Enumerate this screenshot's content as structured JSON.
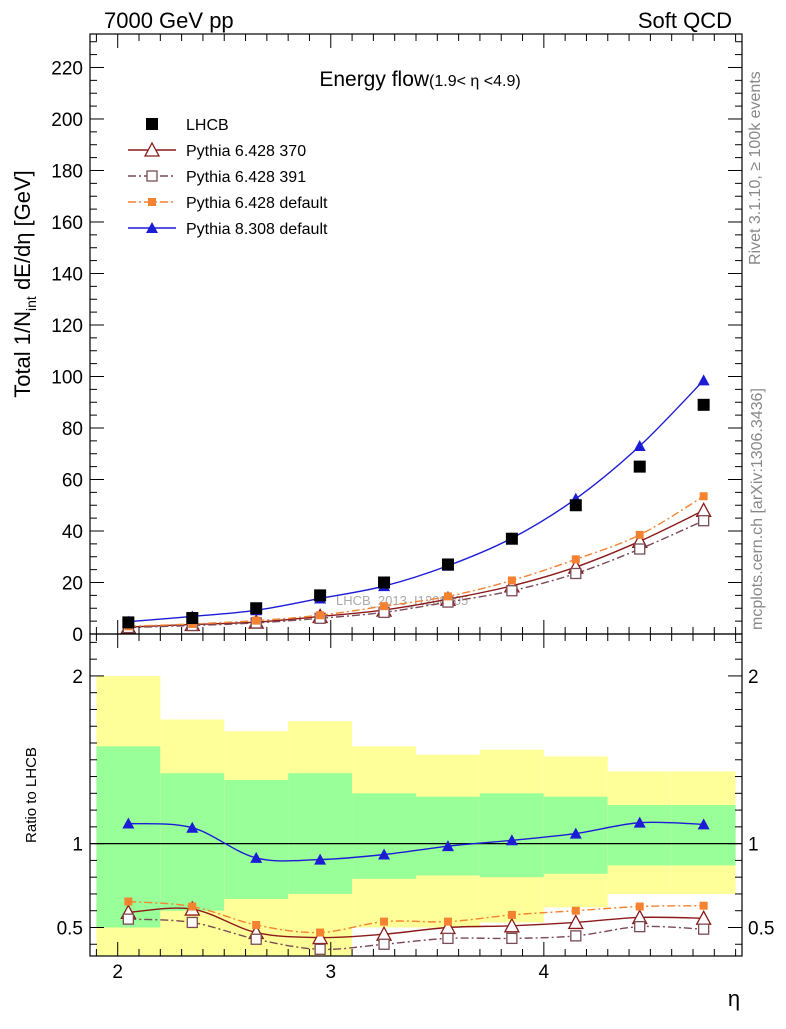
{
  "header": {
    "left": "7000 GeV pp",
    "right": "Soft QCD"
  },
  "side_labels": {
    "rivet": "Rivet 3.1.10, ≥ 100k events",
    "mcplots": "mcplots.cern.ch [arXiv:1306.3436]"
  },
  "chart_data": {
    "type": "scatter",
    "title": "Energy flow",
    "title_sub": "(1.9< η <4.9)",
    "watermark": "LHCB_2013_I1208105",
    "xlabel": "η",
    "xlim": [
      1.87,
      4.93
    ],
    "x_ticks": [
      2,
      3,
      4
    ],
    "x": [
      2.05,
      2.35,
      2.65,
      2.95,
      3.25,
      3.55,
      3.85,
      4.15,
      4.45,
      4.75
    ],
    "main": {
      "ylabel": "Total 1/N_int dE/dη [GeV]",
      "ylabel_pre": "Total 1/N",
      "ylabel_sub": "int",
      "ylabel_post": " dE/dη [GeV]",
      "ylim": [
        0,
        233
      ],
      "y_ticks": [
        0,
        20,
        40,
        60,
        80,
        100,
        120,
        140,
        160,
        180,
        200,
        220
      ]
    },
    "ratio": {
      "ylabel": "Ratio to LHCB",
      "ylim": [
        0.33,
        2.25
      ],
      "y_ticks": [
        0.5,
        1,
        2
      ],
      "y_tick_labels": [
        "0.5",
        "1",
        "2"
      ]
    },
    "bins": [
      {
        "lo": 1.9,
        "hi": 2.2
      },
      {
        "lo": 2.2,
        "hi": 2.5
      },
      {
        "lo": 2.5,
        "hi": 2.8
      },
      {
        "lo": 2.8,
        "hi": 3.1
      },
      {
        "lo": 3.1,
        "hi": 3.4
      },
      {
        "lo": 3.4,
        "hi": 3.7
      },
      {
        "lo": 3.7,
        "hi": 4.0
      },
      {
        "lo": 4.0,
        "hi": 4.3
      },
      {
        "lo": 4.3,
        "hi": 4.6
      },
      {
        "lo": 4.6,
        "hi": 4.9
      }
    ],
    "band_yellow": [
      [
        0.33,
        2.0
      ],
      [
        0.33,
        1.74
      ],
      [
        0.33,
        1.67
      ],
      [
        0.33,
        1.73
      ],
      [
        0.5,
        1.58
      ],
      [
        0.5,
        1.53
      ],
      [
        0.53,
        1.56
      ],
      [
        0.62,
        1.52
      ],
      [
        0.7,
        1.43
      ],
      [
        0.7,
        1.43
      ]
    ],
    "band_green": [
      [
        0.5,
        1.58
      ],
      [
        0.6,
        1.42
      ],
      [
        0.67,
        1.38
      ],
      [
        0.7,
        1.42
      ],
      [
        0.79,
        1.3
      ],
      [
        0.81,
        1.28
      ],
      [
        0.8,
        1.3
      ],
      [
        0.82,
        1.28
      ],
      [
        0.87,
        1.23
      ],
      [
        0.87,
        1.23
      ]
    ],
    "series": [
      {
        "name": "LHCB",
        "marker": "square-filled",
        "color": "#000000",
        "line": "none",
        "values": [
          4.5,
          6.2,
          10,
          15,
          20,
          27,
          37,
          50,
          65,
          89
        ],
        "ratio": [
          1,
          1,
          1,
          1,
          1,
          1,
          1,
          1,
          1,
          1
        ]
      },
      {
        "name": "Pythia 6.428 370",
        "marker": "triangle-open",
        "color": "#8b1a1a",
        "line": "solid",
        "values": [
          2.7,
          3.7,
          4.6,
          6.8,
          9.3,
          13.5,
          18.7,
          26,
          36,
          48
        ],
        "ratio": [
          0.59,
          0.61,
          0.47,
          0.44,
          0.46,
          0.5,
          0.51,
          0.53,
          0.56,
          0.555
        ]
      },
      {
        "name": "Pythia 6.428 391",
        "marker": "square-open",
        "color": "#7a4a55",
        "line": "dashdot",
        "values": [
          2.5,
          3.3,
          4.3,
          6.1,
          8.4,
          12.4,
          16.8,
          23.5,
          33,
          44
        ],
        "ratio": [
          0.55,
          0.53,
          0.43,
          0.37,
          0.4,
          0.435,
          0.435,
          0.45,
          0.505,
          0.49
        ]
      },
      {
        "name": "Pythia 6.428 default",
        "marker": "square-filled-small",
        "color": "#f58231",
        "line": "dashdot",
        "values": [
          3.0,
          3.9,
          5.2,
          7.3,
          10.8,
          14.6,
          20.8,
          29,
          38.5,
          53.5
        ],
        "ratio": [
          0.655,
          0.625,
          0.515,
          0.47,
          0.535,
          0.535,
          0.575,
          0.6,
          0.625,
          0.63
        ]
      },
      {
        "name": "Pythia 8.308 default",
        "marker": "triangle-filled",
        "color": "#1c1cd6",
        "line": "solid",
        "values": [
          4.8,
          6.8,
          9.2,
          13.8,
          18.6,
          26.5,
          37.2,
          52.5,
          73,
          98.5
        ],
        "ratio": [
          1.12,
          1.095,
          0.915,
          0.905,
          0.935,
          0.985,
          1.02,
          1.06,
          1.125,
          1.115
        ]
      }
    ]
  }
}
